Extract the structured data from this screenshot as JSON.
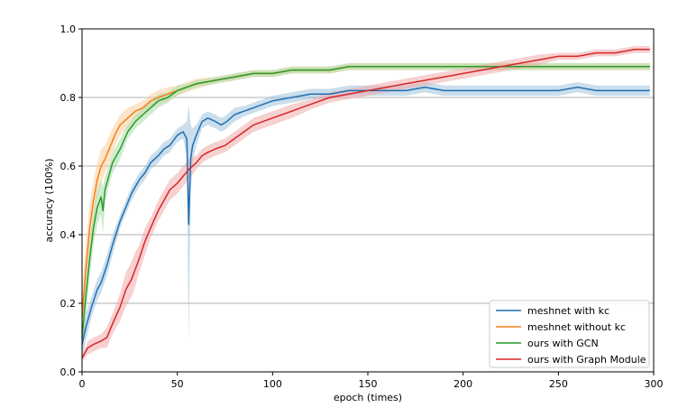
{
  "chart_data": {
    "type": "line",
    "xlabel": "epoch (times)",
    "ylabel": "accuracy (100%)",
    "xlim": [
      0,
      300
    ],
    "ylim": [
      0.0,
      1.0
    ],
    "xticks": [
      "0",
      "50",
      "100",
      "150",
      "200",
      "250",
      "300"
    ],
    "yticks": [
      "0.0",
      "0.2",
      "0.4",
      "0.6",
      "0.8",
      "1.0"
    ],
    "grid": "horizontal",
    "legend_position": "lower-right",
    "series": [
      {
        "name": "meshnet with kc",
        "color": "#1f6fb4",
        "band_color": "#9ec2dd",
        "x": [
          0,
          2,
          5,
          8,
          10,
          13,
          16,
          20,
          23,
          26,
          30,
          33,
          36,
          40,
          43,
          46,
          50,
          53,
          55,
          56,
          57,
          58,
          60,
          63,
          66,
          70,
          73,
          76,
          80,
          85,
          90,
          95,
          100,
          110,
          120,
          130,
          140,
          150,
          160,
          170,
          180,
          190,
          200,
          210,
          220,
          230,
          240,
          250,
          260,
          270,
          280,
          290,
          298
        ],
        "values": [
          0.08,
          0.13,
          0.19,
          0.24,
          0.26,
          0.31,
          0.37,
          0.44,
          0.48,
          0.52,
          0.56,
          0.58,
          0.61,
          0.63,
          0.65,
          0.66,
          0.69,
          0.7,
          0.68,
          0.43,
          0.62,
          0.66,
          0.69,
          0.73,
          0.74,
          0.73,
          0.72,
          0.73,
          0.75,
          0.76,
          0.77,
          0.78,
          0.79,
          0.8,
          0.81,
          0.81,
          0.82,
          0.82,
          0.82,
          0.82,
          0.83,
          0.82,
          0.82,
          0.82,
          0.82,
          0.82,
          0.82,
          0.82,
          0.83,
          0.82,
          0.82,
          0.82,
          0.82
        ],
        "band": [
          0.04,
          0.04,
          0.03,
          0.03,
          0.03,
          0.03,
          0.03,
          0.02,
          0.02,
          0.02,
          0.02,
          0.02,
          0.02,
          0.02,
          0.02,
          0.02,
          0.02,
          0.02,
          0.05,
          0.35,
          0.1,
          0.05,
          0.03,
          0.02,
          0.02,
          0.02,
          0.02,
          0.02,
          0.02,
          0.015,
          0.015,
          0.015,
          0.015,
          0.015,
          0.015,
          0.015,
          0.015,
          0.015,
          0.015,
          0.015,
          0.015,
          0.015,
          0.015,
          0.015,
          0.015,
          0.015,
          0.015,
          0.015,
          0.015,
          0.015,
          0.015,
          0.015,
          0.015
        ]
      },
      {
        "name": "meshnet without kc",
        "color": "#f57f17",
        "band_color": "#fbcf9d",
        "x": [
          0,
          2,
          4,
          6,
          8,
          10,
          12,
          15,
          18,
          20,
          24,
          28,
          32,
          36,
          40,
          45,
          50,
          55,
          60,
          70,
          80,
          90,
          100,
          110,
          120,
          130,
          140,
          150,
          160,
          170,
          180,
          190,
          200,
          210,
          220,
          230,
          240,
          250,
          260,
          270,
          280,
          290,
          298
        ],
        "values": [
          0.16,
          0.3,
          0.42,
          0.5,
          0.56,
          0.6,
          0.62,
          0.66,
          0.7,
          0.72,
          0.74,
          0.76,
          0.77,
          0.79,
          0.8,
          0.81,
          0.82,
          0.83,
          0.84,
          0.85,
          0.86,
          0.87,
          0.87,
          0.88,
          0.88,
          0.88,
          0.89,
          0.89,
          0.89,
          0.89,
          0.89,
          0.89,
          0.89,
          0.89,
          0.89,
          0.89,
          0.89,
          0.89,
          0.89,
          0.89,
          0.89,
          0.89,
          0.89
        ],
        "band": [
          0.08,
          0.08,
          0.07,
          0.06,
          0.05,
          0.05,
          0.04,
          0.04,
          0.03,
          0.03,
          0.03,
          0.02,
          0.02,
          0.02,
          0.02,
          0.02,
          0.015,
          0.015,
          0.015,
          0.01,
          0.01,
          0.01,
          0.01,
          0.01,
          0.01,
          0.01,
          0.01,
          0.01,
          0.01,
          0.01,
          0.01,
          0.01,
          0.01,
          0.01,
          0.01,
          0.01,
          0.01,
          0.01,
          0.01,
          0.01,
          0.01,
          0.01,
          0.01
        ]
      },
      {
        "name": "ours with GCN",
        "color": "#2a9a2a",
        "band_color": "#a6dca6",
        "x": [
          0,
          2,
          4,
          6,
          8,
          10,
          11,
          12,
          14,
          16,
          20,
          24,
          28,
          32,
          36,
          40,
          45,
          50,
          55,
          60,
          70,
          80,
          90,
          100,
          110,
          120,
          130,
          140,
          150,
          160,
          170,
          180,
          190,
          200,
          210,
          220,
          230,
          240,
          250,
          260,
          270,
          280,
          290,
          298
        ],
        "values": [
          0.1,
          0.22,
          0.33,
          0.42,
          0.48,
          0.51,
          0.47,
          0.53,
          0.57,
          0.61,
          0.65,
          0.7,
          0.73,
          0.75,
          0.77,
          0.79,
          0.8,
          0.82,
          0.83,
          0.84,
          0.85,
          0.86,
          0.87,
          0.87,
          0.88,
          0.88,
          0.88,
          0.89,
          0.89,
          0.89,
          0.89,
          0.89,
          0.89,
          0.89,
          0.89,
          0.89,
          0.89,
          0.89,
          0.89,
          0.89,
          0.89,
          0.89,
          0.89,
          0.89
        ],
        "band": [
          0.06,
          0.06,
          0.05,
          0.05,
          0.05,
          0.05,
          0.07,
          0.04,
          0.03,
          0.03,
          0.03,
          0.02,
          0.02,
          0.02,
          0.02,
          0.02,
          0.015,
          0.015,
          0.01,
          0.01,
          0.01,
          0.01,
          0.01,
          0.01,
          0.01,
          0.01,
          0.01,
          0.01,
          0.01,
          0.01,
          0.01,
          0.01,
          0.01,
          0.01,
          0.01,
          0.01,
          0.01,
          0.01,
          0.01,
          0.01,
          0.01,
          0.01,
          0.01,
          0.01
        ]
      },
      {
        "name": "ours with Graph Module",
        "color": "#d62728",
        "band_color": "#f1a9aa",
        "x": [
          0,
          3,
          6,
          10,
          13,
          16,
          20,
          23,
          26,
          28,
          30,
          33,
          36,
          40,
          43,
          46,
          50,
          53,
          56,
          60,
          63,
          66,
          70,
          75,
          80,
          85,
          90,
          95,
          100,
          110,
          120,
          130,
          140,
          150,
          160,
          170,
          180,
          190,
          200,
          210,
          220,
          230,
          240,
          250,
          260,
          270,
          280,
          290,
          298
        ],
        "values": [
          0.04,
          0.07,
          0.08,
          0.09,
          0.1,
          0.14,
          0.19,
          0.24,
          0.27,
          0.3,
          0.33,
          0.38,
          0.42,
          0.47,
          0.5,
          0.53,
          0.55,
          0.57,
          0.59,
          0.61,
          0.63,
          0.64,
          0.65,
          0.66,
          0.68,
          0.7,
          0.72,
          0.73,
          0.74,
          0.76,
          0.78,
          0.8,
          0.81,
          0.82,
          0.83,
          0.84,
          0.85,
          0.86,
          0.87,
          0.88,
          0.89,
          0.9,
          0.91,
          0.92,
          0.92,
          0.93,
          0.93,
          0.94,
          0.94
        ],
        "band": [
          0.01,
          0.02,
          0.02,
          0.02,
          0.03,
          0.03,
          0.04,
          0.05,
          0.05,
          0.05,
          0.04,
          0.04,
          0.03,
          0.03,
          0.03,
          0.03,
          0.03,
          0.03,
          0.03,
          0.02,
          0.02,
          0.02,
          0.02,
          0.02,
          0.02,
          0.02,
          0.02,
          0.02,
          0.02,
          0.02,
          0.015,
          0.015,
          0.015,
          0.015,
          0.015,
          0.015,
          0.015,
          0.015,
          0.015,
          0.015,
          0.015,
          0.015,
          0.015,
          0.01,
          0.01,
          0.01,
          0.01,
          0.01,
          0.01
        ]
      }
    ]
  }
}
